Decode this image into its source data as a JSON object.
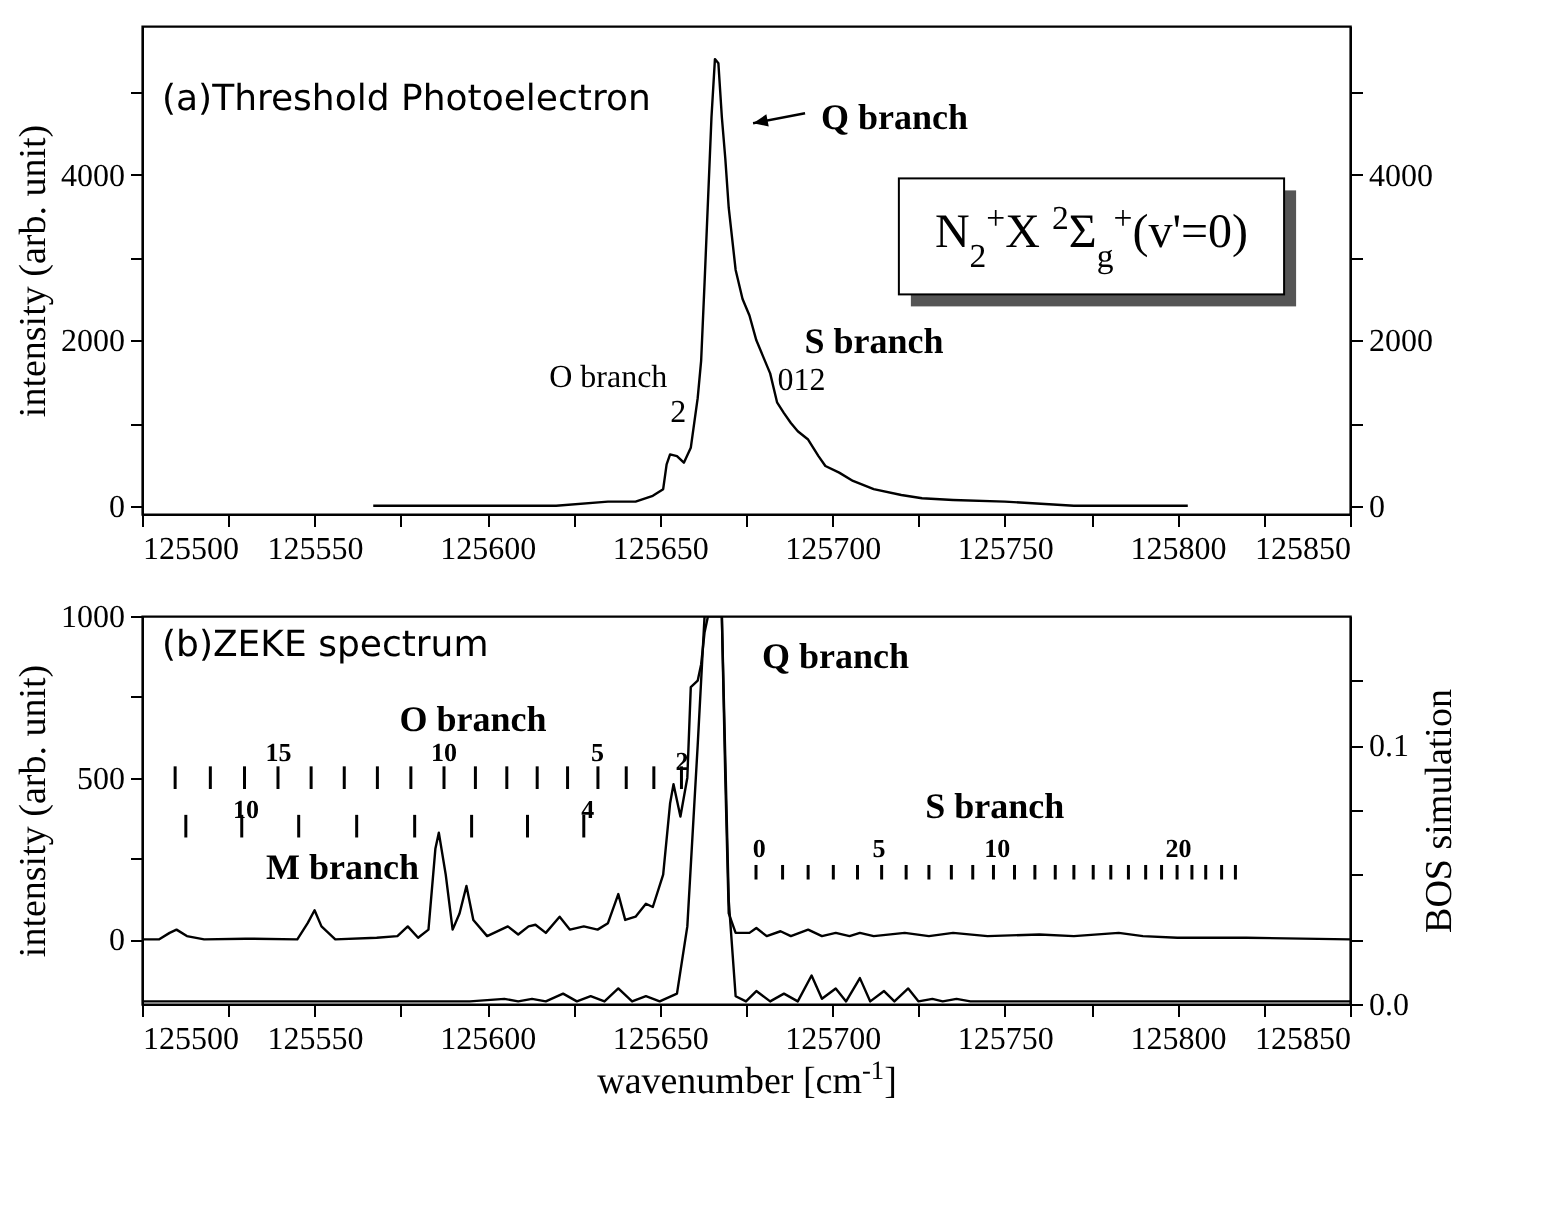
{
  "chart_data": [
    {
      "type": "line",
      "title": "(a)Threshold Photoelectron",
      "ylabel": "intensity (arb. unit)",
      "xlim": [
        125500,
        125850
      ],
      "xticks": [
        125500,
        {
          "value": 125525,
          "label": null
        },
        125550,
        {
          "value": 125575,
          "label": null
        },
        125600,
        {
          "value": 125625,
          "label": null
        },
        125650,
        {
          "value": 125675,
          "label": null
        },
        125700,
        {
          "value": 125725,
          "label": null
        },
        125750,
        {
          "value": 125775,
          "label": null
        },
        125800,
        {
          "value": 125825,
          "label": null
        },
        125850
      ],
      "ylim": [
        -100,
        5800
      ],
      "yticks": [
        0,
        {
          "value": 1000,
          "label": null
        },
        2000,
        {
          "value": 3000,
          "label": null
        },
        4000,
        {
          "value": 5000,
          "label": null
        }
      ],
      "y2lim": [
        -100,
        5800
      ],
      "y2ticks": [
        0,
        {
          "value": 1000,
          "label": null
        },
        2000,
        {
          "value": 3000,
          "label": null
        },
        4000,
        {
          "value": 5000,
          "label": null
        }
      ],
      "series": [
        {
          "color": "#000000",
          "x": [
            125567,
            125600,
            125620,
            125635,
            125643,
            125648,
            125651,
            125652,
            125653,
            125655,
            125657,
            125659,
            125661,
            125662,
            125663,
            125664,
            125665,
            125666,
            125667,
            125668,
            125669,
            125670,
            125672,
            125674,
            125676,
            125678,
            125680,
            125682,
            125684,
            125686,
            125688,
            125690,
            125693,
            125696,
            125698,
            125702,
            125706,
            125712,
            125720,
            125726,
            125735,
            125750,
            125770,
            125790,
            125803
          ],
          "values": [
            0,
            0,
            0,
            50,
            50,
            120,
            200,
            500,
            620,
            600,
            520,
            700,
            1300,
            1750,
            2700,
            3700,
            4700,
            5400,
            5350,
            4700,
            4200,
            3600,
            2850,
            2500,
            2300,
            2000,
            1800,
            1600,
            1250,
            1120,
            1000,
            900,
            800,
            600,
            480,
            400,
            300,
            200,
            130,
            90,
            70,
            50,
            0,
            0,
            0
          ]
        }
      ],
      "annotations": [
        "Q branch",
        "O branch",
        "2",
        "S branch",
        "012",
        "N$_{2}$$^{+}$X $^{2}$Σ$_{g}$$^{+}$(v'=0)"
      ]
    },
    {
      "type": "line",
      "title": "(b)ZEKE spectrum",
      "xlabel": "wavenumber [cm$^{-1}$]",
      "ylabel": "intensity (arb. unit)",
      "y2label": "BOS simulation",
      "xlim": [
        125500,
        125850
      ],
      "xticks": [
        125500,
        {
          "value": 125525,
          "label": null
        },
        125550,
        {
          "value": 125575,
          "label": null
        },
        125600,
        {
          "value": 125625,
          "label": null
        },
        125650,
        {
          "value": 125675,
          "label": null
        },
        125700,
        {
          "value": 125725,
          "label": null
        },
        125750,
        {
          "value": 125775,
          "label": null
        },
        125800,
        {
          "value": 125825,
          "label": null
        },
        125850
      ],
      "ylim": [
        -200,
        1000
      ],
      "yticks": [
        0,
        {
          "value": 250,
          "label": null
        },
        500,
        {
          "value": 750,
          "label": null
        },
        1000
      ],
      "y2lim": [
        0,
        0.15
      ],
      "y2ticks": [
        {
          "value": 0,
          "label": "0.0"
        },
        {
          "value": 0.025,
          "label": null
        },
        {
          "value": 0.05,
          "label": null
        },
        {
          "value": 0.075,
          "label": null
        },
        0.1,
        {
          "value": 0.125,
          "label": null
        }
      ],
      "series": [
        {
          "color": "#000000",
          "x": [
            125500,
            125505,
            125508,
            125510,
            125513,
            125518,
            125530,
            125545,
            125548,
            125550,
            125552,
            125556,
            125568,
            125574,
            125577,
            125580,
            125583,
            125585,
            125586,
            125588,
            125590,
            125592,
            125594,
            125596,
            125600,
            125604,
            125606,
            125609,
            125612,
            125614,
            125617,
            125621,
            125624,
            125628,
            125632,
            125635,
            125638,
            125640,
            125643,
            125646,
            125648,
            125651,
            125653,
            125654,
            125656,
            125658,
            125659,
            125661,
            125662,
            125663,
            125664,
            125666,
            125668,
            125669,
            125670,
            125672,
            125676,
            125678,
            125681,
            125685,
            125688,
            125693,
            125697,
            125701,
            125705,
            125708,
            125712,
            125721,
            125728,
            125735,
            125745,
            125760,
            125770,
            125783,
            125790,
            125800,
            125820,
            125850
          ],
          "values": [
            0,
            0,
            20,
            30,
            10,
            0,
            2,
            0,
            50,
            90,
            40,
            0,
            5,
            10,
            40,
            5,
            30,
            280,
            330,
            200,
            30,
            80,
            165,
            60,
            10,
            30,
            40,
            15,
            40,
            45,
            20,
            70,
            30,
            40,
            30,
            50,
            140,
            60,
            70,
            110,
            100,
            200,
            420,
            480,
            380,
            500,
            780,
            800,
            850,
            950,
            1000,
            1000,
            1000,
            500,
            80,
            20,
            20,
            35,
            10,
            25,
            10,
            30,
            10,
            20,
            10,
            20,
            10,
            20,
            10,
            20,
            10,
            15,
            10,
            20,
            10,
            5,
            5,
            0
          ]
        },
        {
          "color": "#000000",
          "axis": "y2",
          "x": [
            125500,
            125595,
            125605,
            125609,
            125613,
            125617,
            125622,
            125626,
            125630,
            125634,
            125638,
            125642,
            125646,
            125650,
            125655,
            125658,
            125661,
            125663,
            125668,
            125670,
            125672,
            125675,
            125678,
            125682,
            125686,
            125690,
            125694,
            125697,
            125701,
            125704,
            125708,
            125711,
            125715,
            125718,
            125722,
            125725,
            125729,
            125732,
            125736,
            125740,
            125850
          ],
          "values": [
            0.001,
            0.001,
            0.002,
            0.001,
            0.002,
            0.001,
            0.004,
            0.001,
            0.003,
            0.001,
            0.006,
            0.001,
            0.003,
            0.001,
            0.004,
            0.03,
            0.1,
            0.15,
            0.15,
            0.04,
            0.003,
            0.001,
            0.005,
            0.001,
            0.004,
            0.001,
            0.011,
            0.002,
            0.006,
            0.001,
            0.01,
            0.001,
            0.005,
            0.001,
            0.006,
            0.001,
            0.002,
            0.001,
            0.002,
            0.001,
            0.001
          ]
        },
        {
          "type": "bar",
          "color": "#000000",
          "x": [
            125509.6,
            125519.8,
            125529.7,
            125539.4,
            125549.0,
            125558.6,
            125568.2,
            125577.9,
            125587.5,
            125596.6,
            125605.7,
            125614.5,
            125623.3,
            125632.1,
            125640.3,
            125648.3,
            125656.3
          ],
          "base": [
            465,
            465,
            465,
            465,
            465,
            465,
            465,
            465,
            465,
            465,
            465,
            465,
            465,
            465,
            465,
            465,
            465
          ],
          "values": [
            70,
            70,
            70,
            70,
            70,
            70,
            70,
            70,
            70,
            70,
            70,
            70,
            70,
            70,
            70,
            70,
            70
          ]
        },
        {
          "type": "bar",
          "color": "#000000",
          "x": [
            125512.7,
            125528.9,
            125545.4,
            125562.2,
            125579.0,
            125595.5,
            125611.7,
            125628.0
          ],
          "base": [
            315,
            315,
            315,
            315,
            315,
            315,
            315,
            315
          ],
          "values": [
            70,
            70,
            70,
            70,
            70,
            70,
            70,
            70
          ]
        },
        {
          "type": "bar",
          "color": "#000000",
          "x": [
            125677.9,
            125685.6,
            125693.0,
            125700.3,
            125707.3,
            125714.3,
            125721.4,
            125728.0,
            125734.5,
            125740.7,
            125746.7,
            125752.8,
            125758.7,
            125764.6,
            125770.0,
            125775.6,
            125780.7,
            125785.8,
            125790.8,
            125795.4,
            125799.9,
            125804.2,
            125808.2,
            125812.8,
            125816.8
          ],
          "base": [
            185,
            185,
            185,
            185,
            185,
            185,
            185,
            185,
            185,
            185,
            185,
            185,
            185,
            185,
            185,
            185,
            185,
            185,
            185,
            185,
            185,
            185,
            185,
            185,
            185
          ],
          "values": [
            45,
            45,
            45,
            45,
            45,
            45,
            45,
            45,
            45,
            45,
            45,
            45,
            45,
            45,
            45,
            45,
            45,
            45,
            45,
            45,
            45,
            45,
            45,
            45,
            45
          ]
        }
      ],
      "annotations": [
        "Q branch",
        "O branch",
        "M branch",
        "S branch",
        "15",
        "10",
        "5",
        "2",
        "10",
        "4",
        "0",
        "5",
        "10",
        "20"
      ]
    }
  ]
}
